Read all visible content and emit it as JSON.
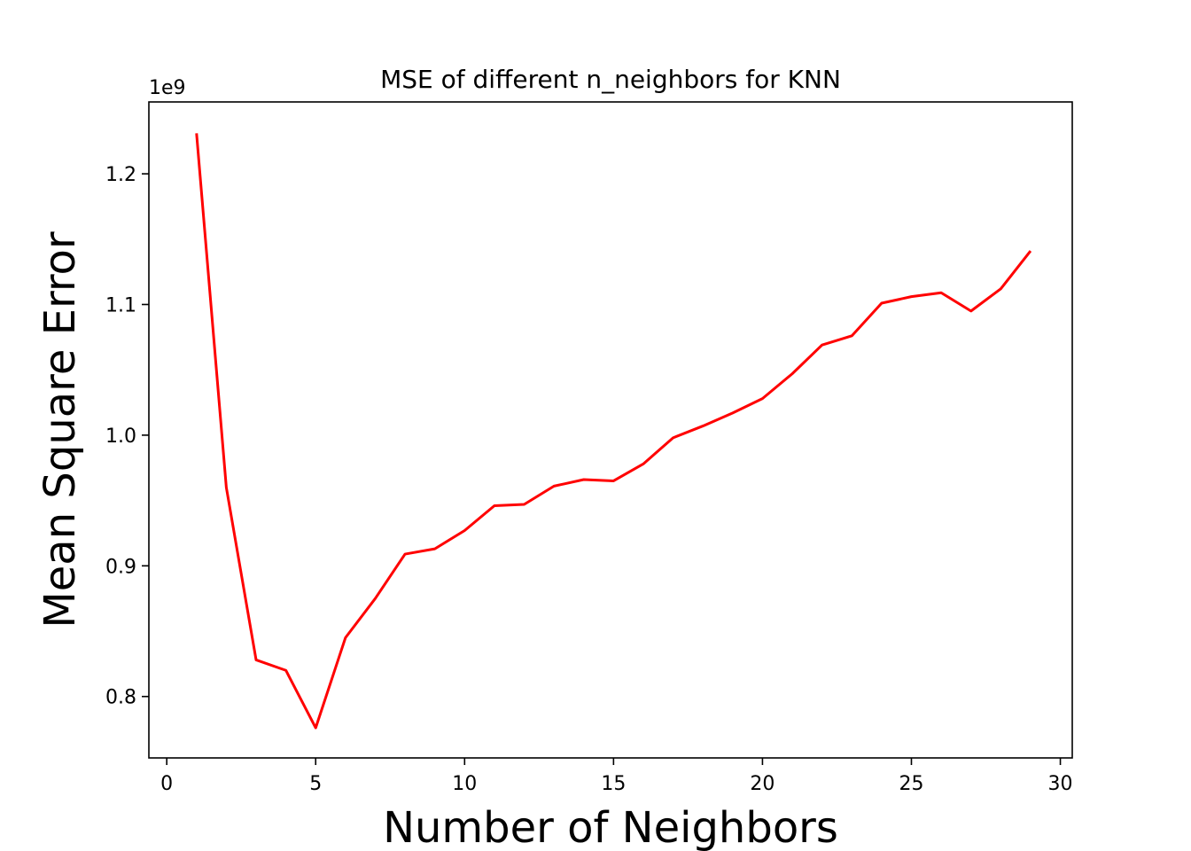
{
  "chart_data": {
    "type": "line",
    "title": "MSE of different n_neighbors for KNN",
    "xlabel": "Number of Neighbors",
    "ylabel": "Mean Square Error",
    "y_offset_label": "1e9",
    "xlim": [
      -0.6,
      30.4
    ],
    "ylim": [
      0.753,
      1.255
    ],
    "xticks": [
      0,
      5,
      10,
      15,
      20,
      25,
      30
    ],
    "xtick_labels": [
      "0",
      "5",
      "10",
      "15",
      "20",
      "25",
      "30"
    ],
    "yticks": [
      0.8,
      0.9,
      1.0,
      1.1,
      1.2
    ],
    "ytick_labels": [
      "0.8",
      "0.9",
      "1.0",
      "1.1",
      "1.2"
    ],
    "grid": false,
    "line_color": "#ff0000",
    "series": [
      {
        "x": [
          1,
          2,
          3,
          4,
          5,
          6,
          7,
          8,
          9,
          10,
          11,
          12,
          13,
          14,
          15,
          16,
          17,
          18,
          19,
          20,
          21,
          22,
          23,
          24,
          25,
          26,
          27,
          28,
          29
        ],
        "values": [
          1.231,
          0.96,
          0.828,
          0.82,
          0.776,
          0.845,
          0.875,
          0.909,
          0.913,
          0.927,
          0.946,
          0.947,
          0.961,
          0.966,
          0.965,
          0.978,
          0.998,
          1.007,
          1.017,
          1.028,
          1.047,
          1.069,
          1.076,
          1.101,
          1.106,
          1.109,
          1.095,
          1.112,
          1.141
        ]
      }
    ]
  }
}
